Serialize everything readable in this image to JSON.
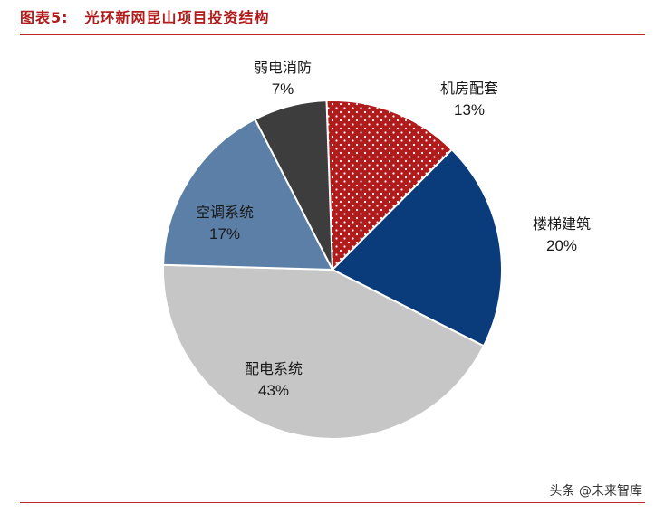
{
  "header": {
    "label": "图表5:",
    "title": "光环新网昆山项目投资结构"
  },
  "watermark": "头条 @未来智库",
  "chart_data": {
    "type": "pie",
    "title": "光环新网昆山项目投资结构",
    "slices": [
      {
        "label": "机房配套",
        "value": 13,
        "pct": "13%",
        "color": "#b01c1c",
        "pattern": "dots"
      },
      {
        "label": "楼梯建筑",
        "value": 20,
        "pct": "20%",
        "color": "#0a3c7c",
        "pattern": "solid"
      },
      {
        "label": "配电系统",
        "value": 43,
        "pct": "43%",
        "color": "#c6c6c6",
        "pattern": "solid"
      },
      {
        "label": "空调系统",
        "value": 17,
        "pct": "17%",
        "color": "#5b7fa6",
        "pattern": "solid"
      },
      {
        "label": "弱电消防",
        "value": 7,
        "pct": "7%",
        "color": "#3d3d3d",
        "pattern": "solid"
      }
    ],
    "start_angle_deg": -2,
    "direction": "clockwise"
  }
}
